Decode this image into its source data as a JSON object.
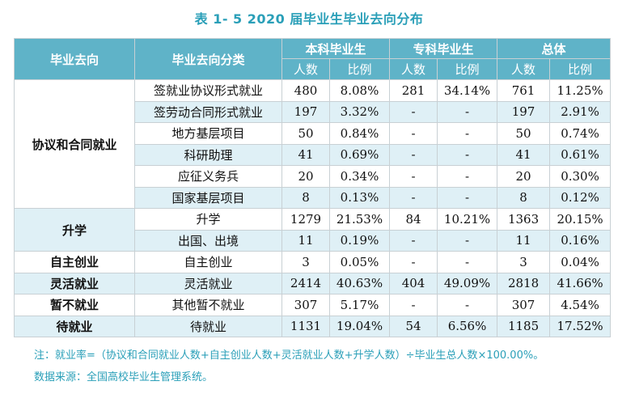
{
  "title": "表 1- 5    2020 届毕业生毕业去向分布",
  "header": {
    "col_direction": "毕业去向",
    "col_category": "毕业去向分类",
    "groups": [
      "本科毕业生",
      "专科毕业生",
      "总体"
    ],
    "count_label": "人数",
    "ratio_label": "比例"
  },
  "groups": [
    {
      "name": "协议和合同就业",
      "rows": [
        {
          "category": "签就业协议形式就业",
          "bk_count": "480",
          "bk_ratio": "8.08%",
          "zk_count": "281",
          "zk_ratio": "34.14%",
          "all_count": "761",
          "all_ratio": "11.25%"
        },
        {
          "category": "签劳动合同形式就业",
          "bk_count": "197",
          "bk_ratio": "3.32%",
          "zk_count": "-",
          "zk_ratio": "-",
          "all_count": "197",
          "all_ratio": "2.91%"
        },
        {
          "category": "地方基层项目",
          "bk_count": "50",
          "bk_ratio": "0.84%",
          "zk_count": "-",
          "zk_ratio": "-",
          "all_count": "50",
          "all_ratio": "0.74%"
        },
        {
          "category": "科研助理",
          "bk_count": "41",
          "bk_ratio": "0.69%",
          "zk_count": "-",
          "zk_ratio": "-",
          "all_count": "41",
          "all_ratio": "0.61%"
        },
        {
          "category": "应征义务兵",
          "bk_count": "20",
          "bk_ratio": "0.34%",
          "zk_count": "-",
          "zk_ratio": "-",
          "all_count": "20",
          "all_ratio": "0.30%"
        },
        {
          "category": "国家基层项目",
          "bk_count": "8",
          "bk_ratio": "0.13%",
          "zk_count": "-",
          "zk_ratio": "-",
          "all_count": "8",
          "all_ratio": "0.12%"
        }
      ]
    },
    {
      "name": "升学",
      "rows": [
        {
          "category": "升学",
          "bk_count": "1279",
          "bk_ratio": "21.53%",
          "zk_count": "84",
          "zk_ratio": "10.21%",
          "all_count": "1363",
          "all_ratio": "20.15%"
        },
        {
          "category": "出国、出境",
          "bk_count": "11",
          "bk_ratio": "0.19%",
          "zk_count": "-",
          "zk_ratio": "-",
          "all_count": "11",
          "all_ratio": "0.16%"
        }
      ]
    },
    {
      "name": "自主创业",
      "rows": [
        {
          "category": "自主创业",
          "bk_count": "3",
          "bk_ratio": "0.05%",
          "zk_count": "-",
          "zk_ratio": "-",
          "all_count": "3",
          "all_ratio": "0.04%"
        }
      ]
    },
    {
      "name": "灵活就业",
      "rows": [
        {
          "category": "灵活就业",
          "bk_count": "2414",
          "bk_ratio": "40.63%",
          "zk_count": "404",
          "zk_ratio": "49.09%",
          "all_count": "2818",
          "all_ratio": "41.66%"
        }
      ]
    },
    {
      "name": "暂不就业",
      "rows": [
        {
          "category": "其他暂不就业",
          "bk_count": "307",
          "bk_ratio": "5.17%",
          "zk_count": "-",
          "zk_ratio": "-",
          "all_count": "307",
          "all_ratio": "4.54%"
        }
      ]
    },
    {
      "name": "待就业",
      "rows": [
        {
          "category": "待就业",
          "bk_count": "1131",
          "bk_ratio": "19.04%",
          "zk_count": "54",
          "zk_ratio": "6.56%",
          "all_count": "1185",
          "all_ratio": "17.52%"
        }
      ]
    }
  ],
  "notes": {
    "note1": "注：就业率=（协议和合同就业人数+自主创业人数+灵活就业人数+升学人数）÷毕业生总人数×100.00%。",
    "note2": "数据来源：全国高校毕业生管理系统。"
  }
}
